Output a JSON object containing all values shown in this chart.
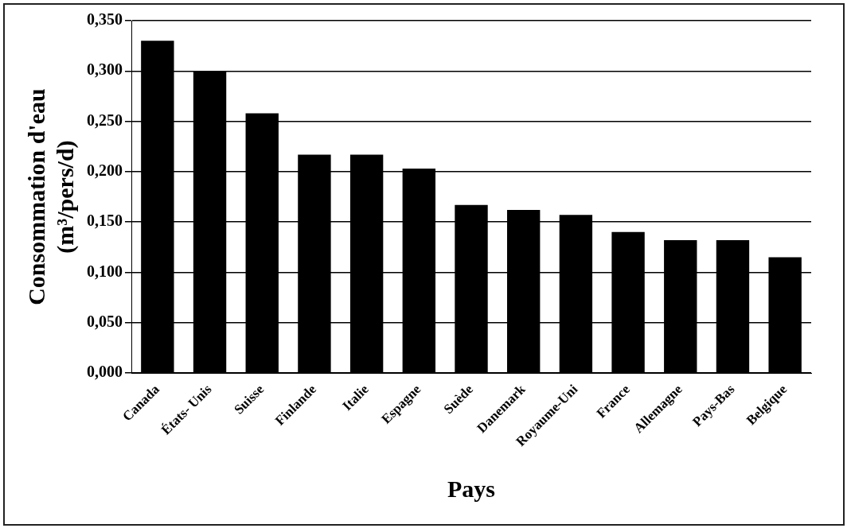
{
  "chart_data": {
    "type": "bar",
    "xlabel": "Pays",
    "ylabel": "Consommation d'eau (m³/pers/d)",
    "categories": [
      "Canada",
      "États- Unis",
      "Suisse",
      "Finlande",
      "Italie",
      "Espagne",
      "Suède",
      "Danemark",
      "Royaume-Uni",
      "France",
      "Allemagne",
      "Pays-Bas",
      "Belgique"
    ],
    "values": [
      0.33,
      0.3,
      0.258,
      0.217,
      0.217,
      0.203,
      0.167,
      0.162,
      0.157,
      0.14,
      0.132,
      0.132,
      0.115
    ],
    "color": "#000000",
    "ylim": [
      0,
      0.35
    ],
    "yticks": [
      {
        "value": 0,
        "label": "0,000"
      },
      {
        "value": 0.05,
        "label": "0,050"
      },
      {
        "value": 0.1,
        "label": "0,100"
      },
      {
        "value": 0.15,
        "label": "0,150"
      },
      {
        "value": 0.2,
        "label": "0,200"
      },
      {
        "value": 0.25,
        "label": "0,250"
      },
      {
        "value": 0.3,
        "label": "0,300"
      },
      {
        "value": 0.35,
        "label": "0,350"
      }
    ],
    "grid": "y",
    "legend": false
  }
}
